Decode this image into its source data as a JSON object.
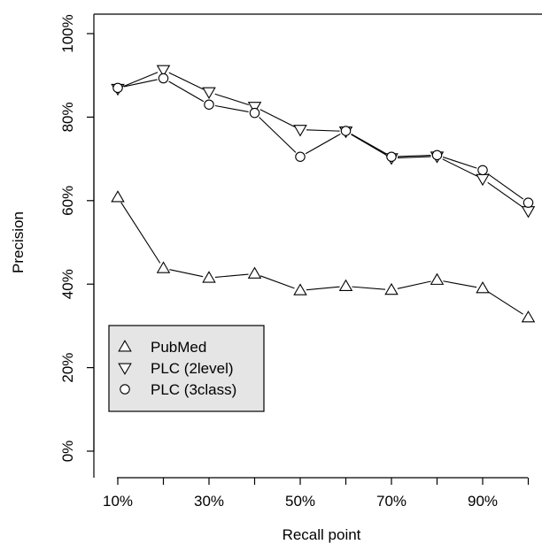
{
  "chart_data": {
    "type": "line",
    "xlabel": "Recall point",
    "ylabel": "Precision",
    "x": [
      10,
      20,
      30,
      40,
      50,
      60,
      70,
      80,
      90,
      100
    ],
    "x_tick_values": [
      10,
      30,
      50,
      70,
      90
    ],
    "x_tick_labels": [
      "10%",
      "30%",
      "50%",
      "70%",
      "90%"
    ],
    "xlim": [
      10,
      100
    ],
    "y_tick_values": [
      0,
      20,
      40,
      60,
      80,
      100
    ],
    "y_tick_labels": [
      "0%",
      "20%",
      "40%",
      "60%",
      "80%",
      "100%"
    ],
    "ylim": [
      0,
      100
    ],
    "grid": false,
    "legend_position": "bottom-left",
    "series": [
      {
        "name": "PubMed",
        "marker": "triangle-up",
        "values": [
          60.8,
          43.8,
          41.5,
          42.5,
          38.5,
          39.5,
          38.6,
          41.0,
          39.0,
          32.0
        ]
      },
      {
        "name": "PLC (2level)",
        "marker": "triangle-down",
        "values": [
          86.8,
          91.3,
          86.0,
          82.5,
          77.0,
          76.6,
          70.2,
          70.6,
          65.2,
          57.5
        ]
      },
      {
        "name": "PLC (3class)",
        "marker": "circle",
        "values": [
          87.0,
          89.3,
          83.0,
          81.0,
          70.5,
          76.7,
          70.5,
          70.9,
          67.3,
          59.5
        ]
      }
    ]
  }
}
